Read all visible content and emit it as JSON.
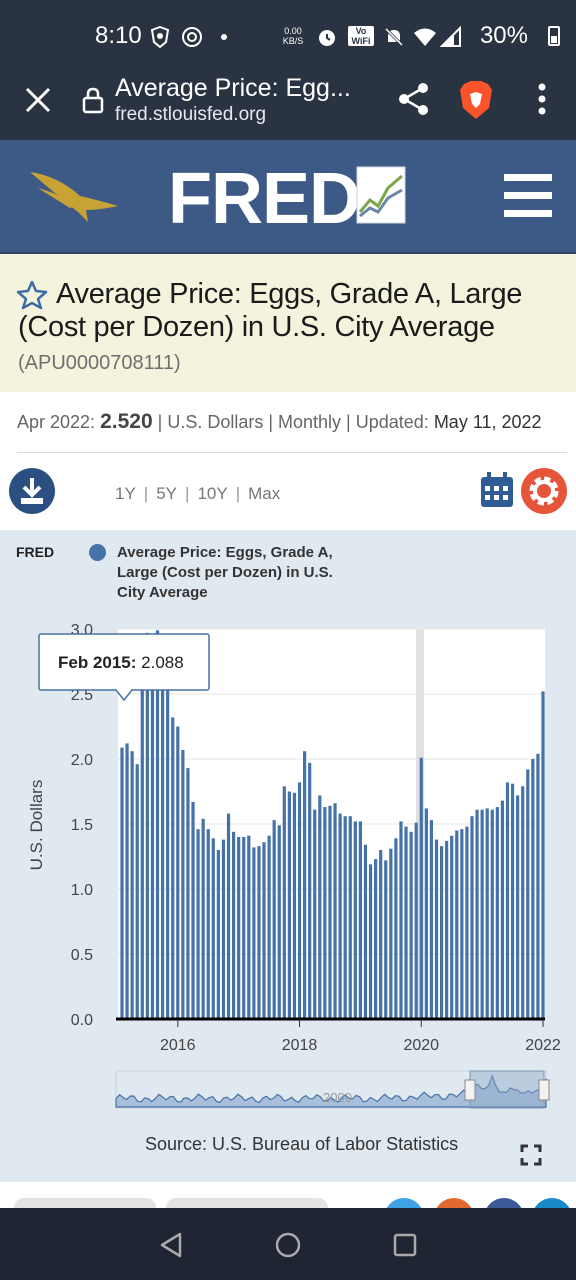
{
  "status_bar": {
    "time": "8:10",
    "net_speed": "0.00 KB/S",
    "vowifi": "Vo WiFi",
    "battery": "30%",
    "icons": [
      "brave-shield-icon",
      "vpn-icon",
      "dot-icon",
      "alarm-icon",
      "mute-icon",
      "wifi-icon",
      "signal-icon",
      "battery-icon"
    ]
  },
  "browser": {
    "page_title": "Average Price: Egg...",
    "domain": "fred.stlouisfed.org"
  },
  "fred": {
    "logo_text": "FRED",
    "title": "Average Price: Eggs, Grade A, Large (Cost per Dozen) in U.S. City Average",
    "series_id": "(APU0000708111)",
    "latest_period": "Apr 2022:",
    "latest_value": "2.520",
    "units_freq": "| U.S. Dollars | Monthly | Updated:",
    "updated": "May 11, 2022",
    "ranges": [
      "1Y",
      "5Y",
      "10Y",
      "Max"
    ],
    "legend_logo": "FRED",
    "legend": "Average Price: Eggs, Grade A, Large (Cost per Dozen) in U.S. City Average",
    "source": "Source: U.S. Bureau of Labor Statistics",
    "tooltip_date": "Feb 2015:",
    "tooltip_value": "2.088",
    "navigator_label": "2000",
    "series_color": "#4572a7"
  },
  "chart_data": {
    "type": "bar",
    "ylabel": "U.S. Dollars",
    "ylim": [
      0,
      3.0
    ],
    "yticks": [
      "0.0",
      "0.5",
      "1.0",
      "1.5",
      "2.0",
      "2.5",
      "3.0"
    ],
    "xticks": [
      "2016",
      "2018",
      "2020",
      "2022"
    ],
    "start": "Feb 2015",
    "end": "Apr 2022",
    "frequency": "monthly",
    "series": [
      {
        "name": "Average Price: Eggs, Grade A, Large (Cost per Dozen) in U.S. City Average",
        "values": [
          2.088,
          2.12,
          2.06,
          1.96,
          2.57,
          2.97,
          2.71,
          2.99,
          2.75,
          2.57,
          2.32,
          2.25,
          2.07,
          1.93,
          1.67,
          1.46,
          1.54,
          1.46,
          1.39,
          1.3,
          1.38,
          1.58,
          1.44,
          1.4,
          1.4,
          1.41,
          1.32,
          1.33,
          1.36,
          1.41,
          1.53,
          1.49,
          1.79,
          1.75,
          1.74,
          1.82,
          2.06,
          1.97,
          1.61,
          1.72,
          1.63,
          1.64,
          1.66,
          1.58,
          1.56,
          1.56,
          1.52,
          1.52,
          1.34,
          1.19,
          1.23,
          1.3,
          1.22,
          1.31,
          1.39,
          1.52,
          1.48,
          1.44,
          1.51,
          2.01,
          1.62,
          1.53,
          1.38,
          1.33,
          1.37,
          1.41,
          1.45,
          1.46,
          1.48,
          1.56,
          1.61,
          1.61,
          1.62,
          1.61,
          1.63,
          1.68,
          1.82,
          1.81,
          1.72,
          1.79,
          1.92,
          2.0,
          2.04,
          2.52
        ]
      }
    ],
    "grid": true,
    "legend_position": "top"
  }
}
